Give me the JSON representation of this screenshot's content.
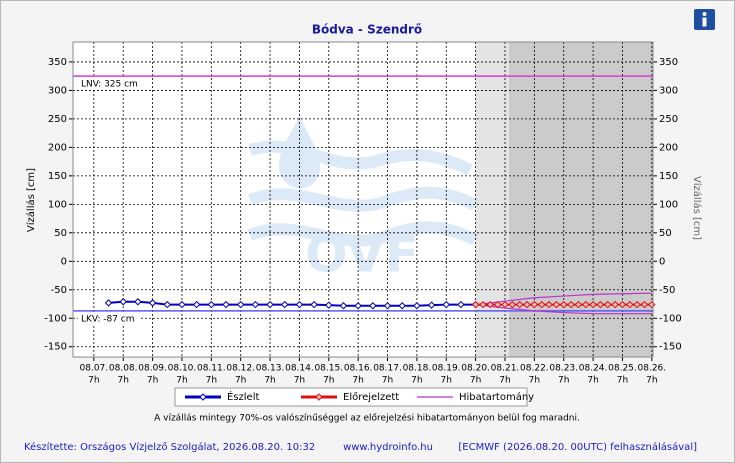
{
  "chart_data": {
    "type": "line",
    "title": "Bódva - Szendrő",
    "y_label": "Vízállás [cm]",
    "y2_label": "Vízállás [cm]",
    "xlim": [
      6.58,
      26.33
    ],
    "ylim": [
      -168,
      385
    ],
    "yticks": [
      -150,
      -100,
      -50,
      0,
      50,
      100,
      150,
      200,
      250,
      300,
      350
    ],
    "xticks": [
      {
        "value": 7.29,
        "label": "08.07."
      },
      {
        "value": 8.29,
        "label": "08.08."
      },
      {
        "value": 9.29,
        "label": "08.09."
      },
      {
        "value": 10.29,
        "label": "08.10."
      },
      {
        "value": 11.29,
        "label": "08.11."
      },
      {
        "value": 12.29,
        "label": "08.12."
      },
      {
        "value": 13.29,
        "label": "08.13."
      },
      {
        "value": 14.29,
        "label": "08.14."
      },
      {
        "value": 15.29,
        "label": "08.15."
      },
      {
        "value": 16.29,
        "label": "08.16."
      },
      {
        "value": 17.29,
        "label": "08.17."
      },
      {
        "value": 18.29,
        "label": "08.18."
      },
      {
        "value": 19.29,
        "label": "08.19."
      },
      {
        "value": 20.29,
        "label": "08.20."
      },
      {
        "value": 21.29,
        "label": "08.21."
      },
      {
        "value": 22.29,
        "label": "08.22."
      },
      {
        "value": 23.29,
        "label": "08.23."
      },
      {
        "value": 24.29,
        "label": "08.24."
      },
      {
        "value": 25.29,
        "label": "08.25."
      },
      {
        "value": 26.29,
        "label": "08.26."
      }
    ],
    "xtick_hour": "7h",
    "grid": true,
    "shaded": [
      {
        "from": 20.29,
        "to": 21.42,
        "color": "#e4e4e4"
      },
      {
        "from": 21.42,
        "to": 26.33,
        "color": "#cbcbcb"
      }
    ],
    "reference_lines": [
      {
        "label": "LNV: 325 cm",
        "value": 325,
        "color": "#d23cd2"
      },
      {
        "label": "LKV: -87 cm",
        "value": -87,
        "color": "#5a5aee"
      }
    ],
    "series": [
      {
        "name": "Észlelt",
        "color": "#0000c0",
        "marker_fill": "#ffffff",
        "x": [
          7.79,
          8.29,
          8.79,
          9.29,
          9.79,
          10.29,
          10.79,
          11.29,
          11.79,
          12.29,
          12.79,
          13.29,
          13.79,
          14.29,
          14.79,
          15.29,
          15.79,
          16.29,
          16.79,
          17.29,
          17.79,
          18.29,
          18.79,
          19.29,
          19.79,
          20.29
        ],
        "values": [
          -73,
          -71,
          -71,
          -73,
          -76,
          -76,
          -76,
          -76,
          -76,
          -76,
          -76,
          -76,
          -76,
          -76,
          -76,
          -77,
          -78,
          -78,
          -78,
          -78,
          -78,
          -78,
          -77,
          -76,
          -76,
          -76
        ]
      },
      {
        "name": "Előrejelzett",
        "color": "#e01010",
        "marker_fill": "#f8c0c0",
        "x": [
          20.29,
          20.54,
          20.79,
          21.04,
          21.29,
          21.54,
          21.79,
          22.04,
          22.29,
          22.54,
          22.79,
          23.04,
          23.29,
          23.54,
          23.79,
          24.04,
          24.29,
          24.54,
          24.79,
          25.04,
          25.29,
          25.54,
          25.79,
          26.04,
          26.29
        ],
        "values": [
          -76,
          -76,
          -76,
          -76,
          -76,
          -76,
          -76,
          -76,
          -76,
          -76,
          -76,
          -76,
          -76,
          -76,
          -76,
          -76,
          -76,
          -76,
          -76,
          -76,
          -76,
          -76,
          -76,
          -76,
          -76
        ]
      }
    ],
    "band": {
      "name": "Hibatartomány",
      "color": "#c030d0",
      "x": [
        20.29,
        21.29,
        22.29,
        23.29,
        24.29,
        25.29,
        26.29
      ],
      "upper": [
        -76,
        -70,
        -64,
        -61,
        -58,
        -57,
        -56
      ],
      "lower": [
        -76,
        -82,
        -87,
        -90,
        -92,
        -92,
        -92
      ]
    },
    "watermark": "OVF",
    "note": "A vízállás mintegy 70%-os valószínűséggel az előrejelzési hibatartományon belül fog maradni.",
    "footer_left": "Készítette: Országos Vízjelző Szolgálat, 2026.08.20. 10:32",
    "footer_center": "www.hydroinfo.hu",
    "footer_right": "[ECMWF (2026.08.20. 00UTC) felhasználásával]"
  }
}
